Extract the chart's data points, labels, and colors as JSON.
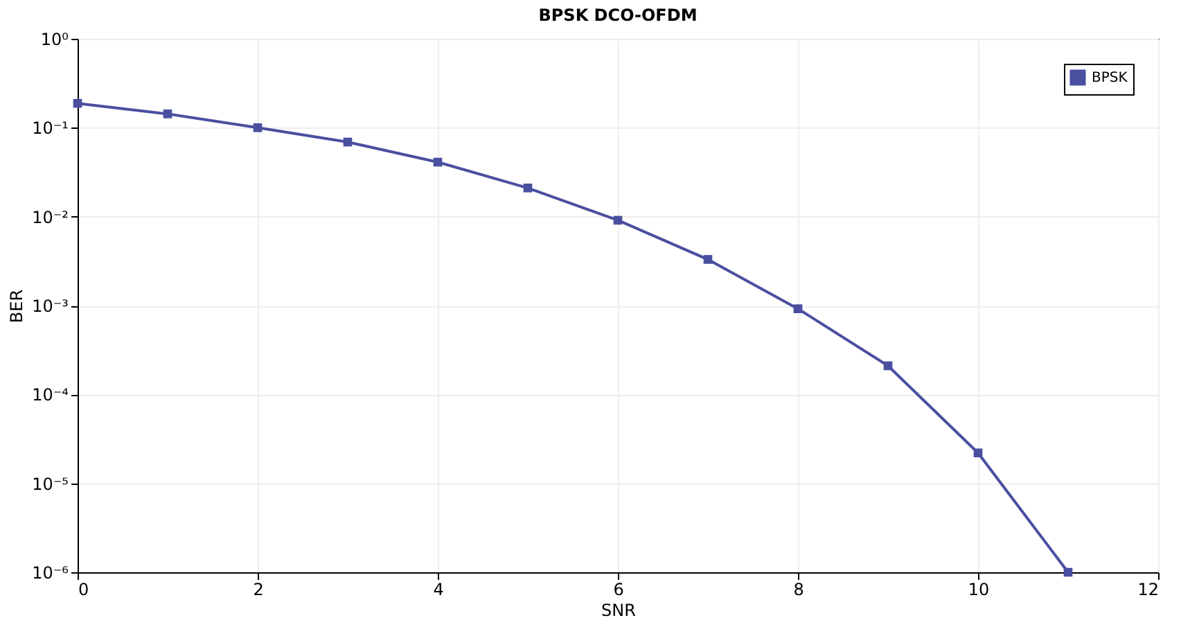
{
  "chart_data": {
    "type": "line",
    "title": "BPSK DCO-OFDM",
    "xlabel": "SNR",
    "ylabel": "BER",
    "x": [
      0,
      1,
      2,
      3,
      4,
      5,
      6,
      7,
      8,
      9,
      10,
      11
    ],
    "series": [
      {
        "name": "BPSK",
        "color": "#4a4fa0",
        "values": [
          0.188,
          0.143,
          0.1,
          0.069,
          0.041,
          0.021,
          0.0091,
          0.0033,
          0.00092,
          0.00021,
          2.2e-05,
          1e-06
        ]
      }
    ],
    "xlim": [
      0,
      12
    ],
    "xticks": [
      0,
      2,
      4,
      6,
      8,
      10,
      12
    ],
    "ylim": [
      1e-06,
      1
    ],
    "yticks": [
      {
        "value": 1e-06,
        "label": "10⁻⁶"
      },
      {
        "value": 1e-05,
        "label": "10⁻⁵"
      },
      {
        "value": 0.0001,
        "label": "10⁻⁴"
      },
      {
        "value": 0.001,
        "label": "10⁻³"
      },
      {
        "value": 0.01,
        "label": "10⁻²"
      },
      {
        "value": 0.1,
        "label": "10⁻¹"
      },
      {
        "value": 1,
        "label": "10⁰"
      }
    ],
    "log": "y",
    "grid": true,
    "legend": "top right",
    "marker": "square",
    "line_style": "solid"
  }
}
